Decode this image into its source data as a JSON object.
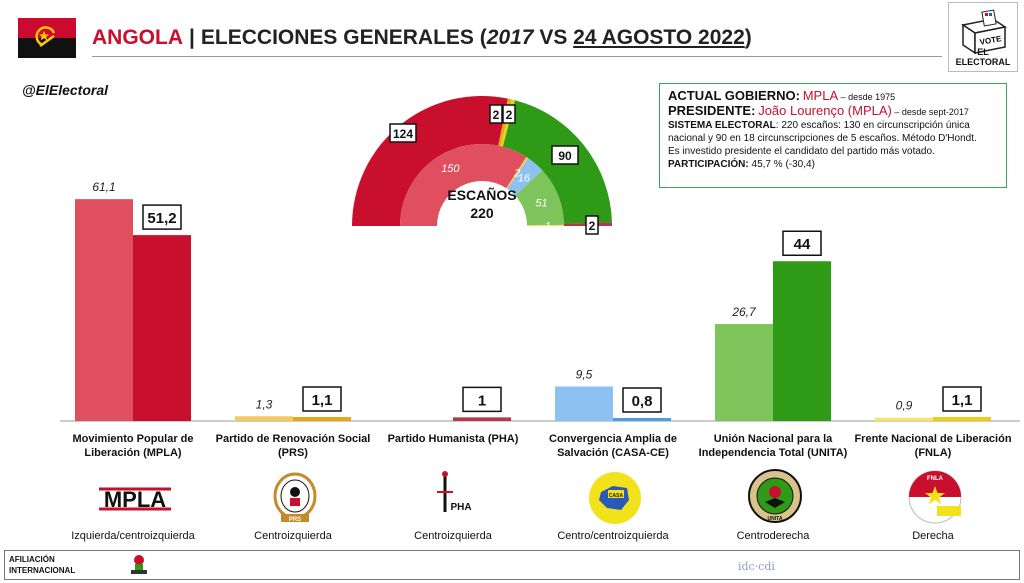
{
  "header": {
    "country": "ANGOLA",
    "separator": "|",
    "title_pre": "ELECCIONES GENERALES (",
    "year": "2017",
    "vs": " VS ",
    "date": "24 AGOSTO 2022",
    "title_post": ")",
    "logo_text": "EL ELECTORAL",
    "logo_ballot": "VOTE"
  },
  "handle": "@ElElectoral",
  "info": {
    "gov_label": "ACTUAL GOBIERNO:",
    "gov_value": "MPLA",
    "gov_since": " – desde 1975",
    "pres_label": "PRESIDENTE:",
    "pres_value": "João Lourenço (MPLA)",
    "pres_since": " – desde sept-2017",
    "sys_label": "SISTEMA ELECTORAL",
    "sys_text_1": ": 220 escaños: 130 en circunscripción única",
    "sys_text_2": "nacional y 90 en 18 circunscripciones de 5 escaños. Método D'Hondt.",
    "sys_text_3": "Es investido presidente el candidato del partido más votado.",
    "part_label": "PARTICIPACIÓN:",
    "part_value": " 45,7 % (-30,4)"
  },
  "chart_data": [
    {
      "type": "bar",
      "title": "",
      "categories": [
        "MPLA",
        "PRS",
        "PHA",
        "CASA-CE",
        "UNITA",
        "FNLA"
      ],
      "series": [
        {
          "name": "2017",
          "values": [
            61.1,
            1.3,
            null,
            9.5,
            26.7,
            0.9
          ],
          "labels": [
            "61,1",
            "1,3",
            "",
            "9,5",
            "26,7",
            "0,9"
          ]
        },
        {
          "name": "2022",
          "values": [
            51.2,
            1.1,
            1.0,
            0.8,
            44.0,
            1.1
          ],
          "labels": [
            "51,2",
            "1,1",
            "1",
            "0,8",
            "44",
            "1,1"
          ]
        }
      ],
      "ylim": [
        0,
        65
      ],
      "grid": false,
      "colors_2017": [
        "#df4f5f",
        "#f4c95d",
        "#e8a3ab",
        "#8cc1f2",
        "#7dc45b",
        "#f4e36b"
      ],
      "colors_2022": [
        "#c8102e",
        "#e8a719",
        "#b23a4a",
        "#4a9fe0",
        "#2f9a16",
        "#e8d016"
      ]
    },
    {
      "type": "pie",
      "title": "ESCAÑOS",
      "total_label": "220",
      "outer_series": {
        "name": "2022",
        "parties": [
          "MPLA",
          "PRS",
          "FNLA",
          "UNITA",
          "PHA"
        ],
        "values": [
          124,
          2,
          2,
          90,
          2
        ],
        "labels": [
          "124",
          "2",
          "2",
          "90",
          "2"
        ]
      },
      "inner_series": {
        "name": "2017",
        "parties": [
          "MPLA",
          "PRS",
          "CASA-CE",
          "UNITA",
          "FNLA"
        ],
        "values": [
          150,
          2,
          16,
          51,
          1
        ],
        "labels": [
          "150",
          "2",
          "16",
          "51",
          "1"
        ]
      }
    }
  ],
  "parties": [
    {
      "name_1": "Movimiento Popular de",
      "name_2": "Liberación (MPLA)",
      "ideology": "Izquierda/centroizquierda",
      "logo": "MPLA"
    },
    {
      "name_1": "Partido de Renovación Social",
      "name_2": "(PRS)",
      "ideology": "Centroizquierda",
      "logo": "PRS"
    },
    {
      "name_1": "Partido Humanista (PHA)",
      "name_2": "",
      "ideology": "Centroizquierda",
      "logo": "PHA"
    },
    {
      "name_1": "Convergencia Amplia de",
      "name_2": "Salvación (CASA-CE)",
      "ideology": "Centro/centroizquierda",
      "logo": "CASA"
    },
    {
      "name_1": "Unión Nacional para la",
      "name_2": "Independencia Total (UNITA)",
      "ideology": "Centroderecha",
      "logo": "UNITA"
    },
    {
      "name_1": "Frente Nacional de Liberación",
      "name_2": "(FNLA)",
      "ideology": "Derecha",
      "logo": "FNLA"
    }
  ],
  "footer": {
    "label_1": "AFILIACIÓN",
    "label_2": "INTERNACIONAL",
    "source": "idc·cdi"
  }
}
